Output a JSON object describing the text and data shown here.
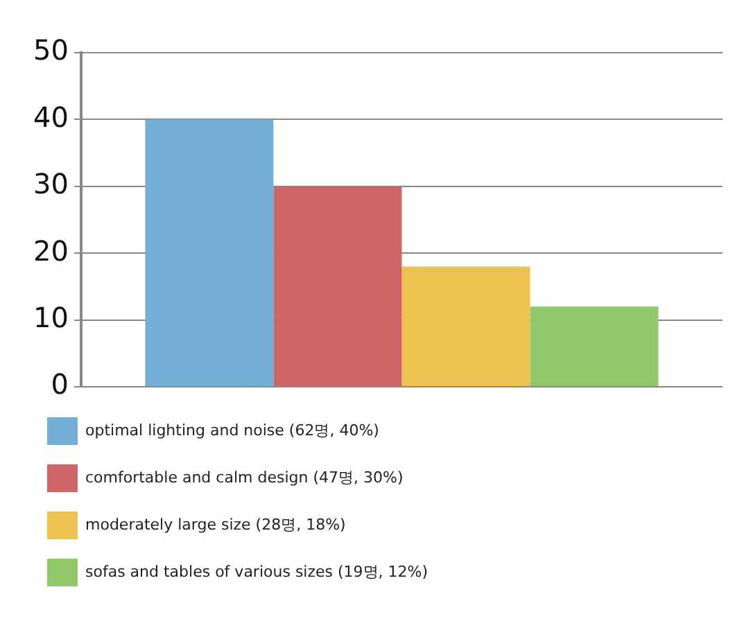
{
  "chart_data": {
    "type": "bar",
    "categories": [
      null
    ],
    "series": [
      {
        "name": "optimal lighting and noise (62명, 40%)",
        "color": "#74b0d6",
        "values": [
          40
        ]
      },
      {
        "name": "comfortable and calm design (47명, 30%)",
        "color": "#cd6565",
        "values": [
          30
        ]
      },
      {
        "name": "moderately large size (28명, 18%)",
        "color": "#ecc350",
        "values": [
          18
        ]
      },
      {
        "name": "sofas and tables of various sizes (19명, 12%)",
        "color": "#8fc96a",
        "values": [
          12
        ]
      }
    ],
    "ylim": [
      0,
      50
    ],
    "yticks": [
      0,
      10,
      20,
      30,
      40,
      50
    ],
    "grid": "y",
    "legend": "bottom",
    "tick_labels": "y"
  }
}
